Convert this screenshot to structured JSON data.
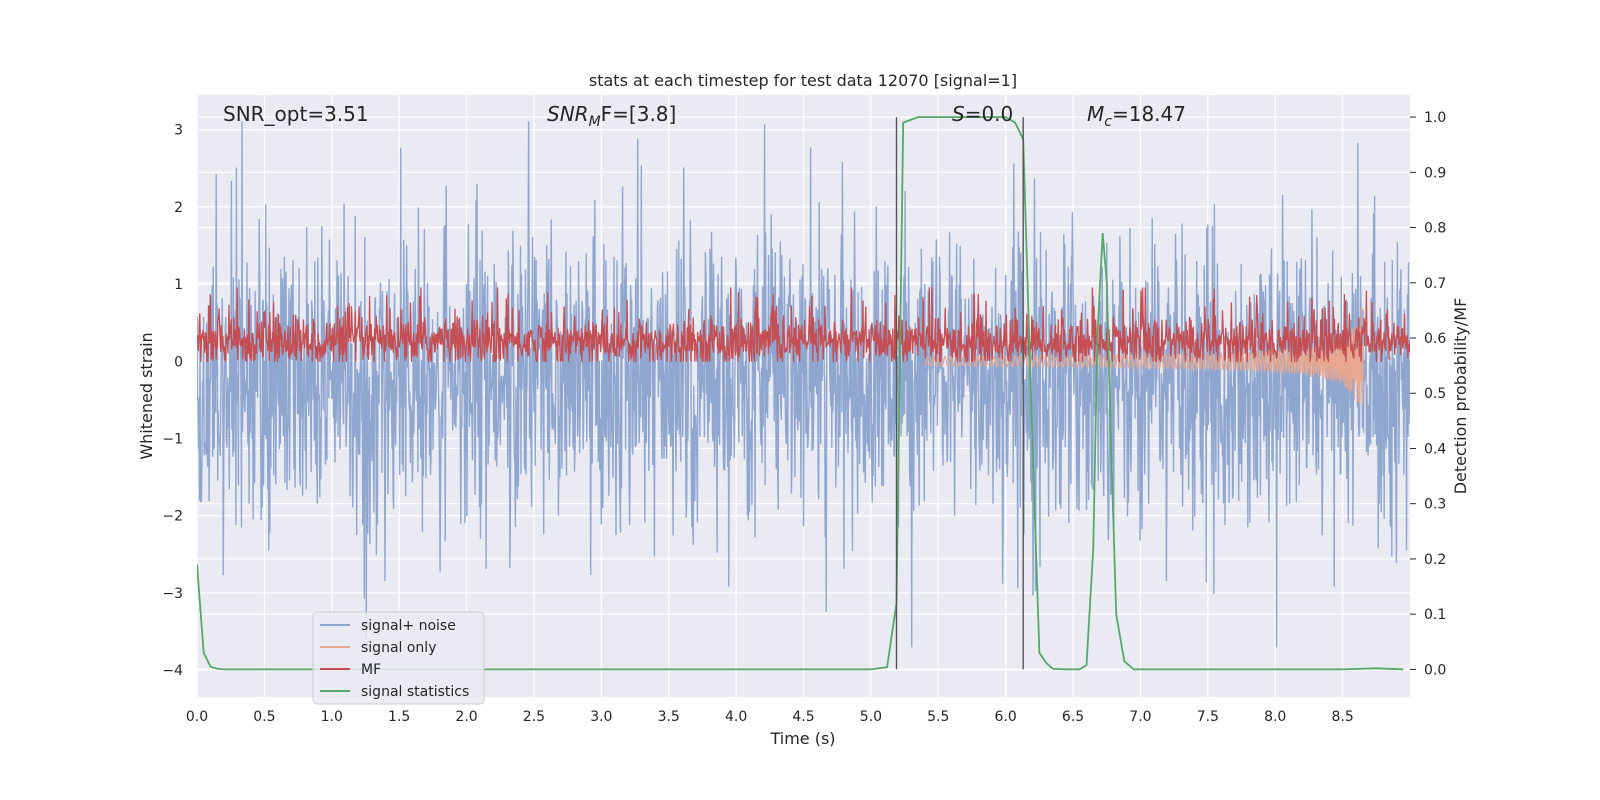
{
  "chart_data": {
    "type": "line",
    "title": "stats at each timestep for test data 12070 [signal=1]",
    "xlabel": "Time (s)",
    "ylabel_left": "Whitened strain",
    "ylabel_right": "Detection probability/MF",
    "xlim": [
      0.0,
      9.0
    ],
    "ylim_left": [
      -4.35,
      3.45
    ],
    "ylim_right": [
      -0.05,
      1.04
    ],
    "xticks": [
      "0.0",
      "0.5",
      "1.0",
      "1.5",
      "2.0",
      "2.5",
      "3.0",
      "3.5",
      "4.0",
      "4.5",
      "5.0",
      "5.5",
      "6.0",
      "6.5",
      "7.0",
      "7.5",
      "8.0",
      "8.5"
    ],
    "yticks_left": [
      "3",
      "2",
      "1",
      "0",
      "−1",
      "−2",
      "−3",
      "−4"
    ],
    "yticks_right": [
      "1.0",
      "0.9",
      "0.8",
      "0.7",
      "0.6",
      "0.5",
      "0.4",
      "0.3",
      "0.2",
      "0.1",
      "0.0"
    ],
    "annotations": {
      "snr_opt": "SNR_opt=3.51",
      "snr_mf_main": "SNR",
      "snr_mf_sub": "M",
      "snr_mf_rest": "F=[3.8]",
      "s_main": "S",
      "s_rest": "=0.0",
      "mc_main": "M",
      "mc_sub": "c",
      "mc_rest": "=18.47"
    },
    "vlines_x": [
      5.19,
      6.13
    ],
    "series": [
      {
        "name": "signal+ noise",
        "color": "#8fa6cf",
        "axis": "left",
        "kind": "noise",
        "std": 0.92,
        "center": -0.25
      },
      {
        "name": "signal only",
        "color": "#e8a78f",
        "axis": "left",
        "kind": "chirp",
        "end_time": 8.66
      },
      {
        "name": "MF",
        "color": "#c44e52",
        "axis": "left",
        "kind": "mf",
        "center": 0.25,
        "std": 0.16
      },
      {
        "name": "signal statistics",
        "color": "#55a868",
        "axis": "right",
        "kind": "line",
        "x": [
          0.0,
          0.05,
          0.1,
          0.15,
          0.2,
          0.3,
          1.0,
          2.0,
          3.0,
          4.0,
          5.0,
          5.12,
          5.19,
          5.24,
          5.35,
          5.6,
          6.0,
          6.07,
          6.13,
          6.2,
          6.25,
          6.3,
          6.35,
          6.45,
          6.55,
          6.6,
          6.65,
          6.68,
          6.72,
          6.75,
          6.78,
          6.82,
          6.88,
          6.95,
          7.0,
          7.5,
          8.0,
          8.5,
          8.75,
          8.95
        ],
        "y": [
          0.19,
          0.03,
          0.005,
          0.001,
          0.0,
          0.0,
          0.0,
          0.0,
          0.0,
          0.0,
          0.0,
          0.004,
          0.12,
          0.99,
          1.0,
          1.0,
          1.0,
          0.99,
          0.96,
          0.4,
          0.03,
          0.012,
          0.001,
          0.0,
          0.0,
          0.008,
          0.22,
          0.6,
          0.79,
          0.7,
          0.42,
          0.1,
          0.015,
          0.0,
          0.0,
          0.0,
          0.0,
          0.0,
          0.002,
          0.0
        ]
      }
    ],
    "legend": [
      "signal+ noise",
      "signal only",
      "MF",
      "signal statistics"
    ],
    "legend_position": "lower-left"
  }
}
